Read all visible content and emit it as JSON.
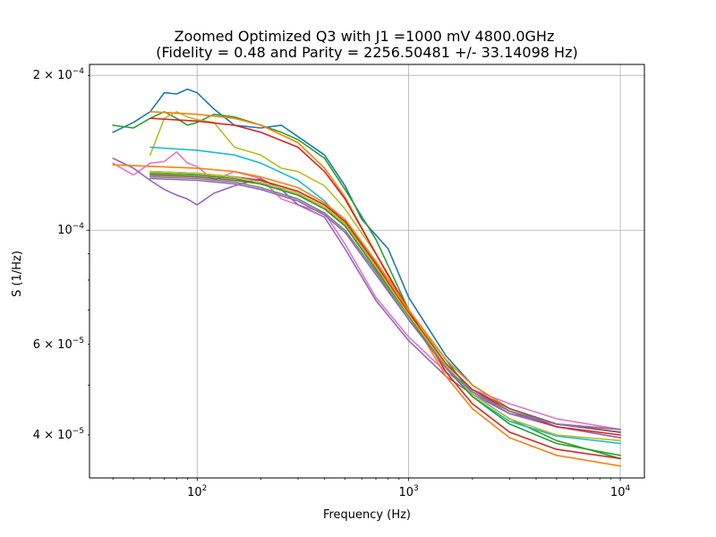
{
  "chart_data": {
    "type": "line",
    "title": "Zoomed Optimized Q3 with J1 =1000 mV 4800.0GHz",
    "subtitle": "(Fidelity = 0.48 and Parity = 2256.50481 +/- 33.14098 Hz)",
    "xlabel": "Frequency (Hz)",
    "ylabel": "S (1/Hz)",
    "xscale": "log",
    "yscale": "log",
    "xlim": [
      31,
      13000
    ],
    "ylim": [
      3.3e-05,
      0.00021
    ],
    "grid": true,
    "xticks": [
      {
        "value": 100,
        "base": "10",
        "exp": "2"
      },
      {
        "value": 1000,
        "base": "10",
        "exp": "3"
      },
      {
        "value": 10000,
        "base": "10",
        "exp": "4"
      }
    ],
    "yticks": [
      {
        "value": 0.0002,
        "mant": "2",
        "base": "10",
        "exp": "−4",
        "major": true
      },
      {
        "value": 0.0001,
        "mant": "",
        "base": "10",
        "exp": "−4",
        "major": true
      },
      {
        "value": 6e-05,
        "mant": "6",
        "base": "10",
        "exp": "−5",
        "major": false
      },
      {
        "value": 4e-05,
        "mant": "4",
        "base": "10",
        "exp": "−5",
        "major": false
      }
    ],
    "series": [
      {
        "color": "#1f77b4",
        "kind": "data",
        "x": [
          40,
          50,
          60,
          70,
          80,
          90,
          100,
          120,
          150,
          200,
          250,
          300,
          400,
          500,
          600,
          800,
          1000,
          1500,
          2000,
          3000,
          5000,
          10000
        ],
        "y": [
          0.000155,
          0.000162,
          0.00017,
          0.000185,
          0.000184,
          0.000188,
          0.000185,
          0.000172,
          0.00016,
          0.000158,
          0.00016,
          0.000152,
          0.00014,
          0.000122,
          0.000105,
          9.2e-05,
          7.4e-05,
          5.7e-05,
          5e-05,
          4.5e-05,
          4.2e-05,
          4.05e-05
        ]
      },
      {
        "color": "#2ca02c",
        "kind": "data",
        "x": [
          40,
          50,
          60,
          70,
          80,
          90,
          100,
          120,
          150,
          200,
          250,
          300,
          400,
          500,
          700,
          1000,
          1500,
          2000,
          3000,
          5000,
          10000
        ],
        "y": [
          0.00016,
          0.000158,
          0.000165,
          0.00017,
          0.000165,
          0.00016,
          0.000162,
          0.000168,
          0.000166,
          0.00016,
          0.000155,
          0.00015,
          0.000138,
          0.00012,
          9.6e-05,
          7e-05,
          5.6e-05,
          4.8e-05,
          4.3e-05,
          3.9e-05,
          3.6e-05
        ]
      },
      {
        "color": "#bcbd22",
        "kind": "data",
        "x": [
          60,
          70,
          80,
          90,
          100,
          120,
          150,
          200,
          250,
          300,
          400,
          500,
          700,
          1000,
          1500,
          2000,
          3000,
          5000,
          10000
        ],
        "y": [
          0.00014,
          0.000165,
          0.00017,
          0.000166,
          0.000164,
          0.000162,
          0.000145,
          0.00014,
          0.000132,
          0.00013,
          0.000122,
          0.00011,
          9e-05,
          7e-05,
          5.5e-05,
          4.9e-05,
          4.45e-05,
          4.15e-05,
          3.95e-05
        ]
      },
      {
        "color": "#e377c2",
        "kind": "data",
        "x": [
          40,
          50,
          60,
          70,
          80,
          90,
          100,
          120,
          150,
          200,
          250,
          300,
          400,
          500,
          700,
          1000,
          1500,
          2000,
          3000,
          5000,
          10000
        ],
        "y": [
          0.000135,
          0.000128,
          0.000135,
          0.000136,
          0.000142,
          0.000135,
          0.000133,
          0.000125,
          0.00013,
          0.000126,
          0.000115,
          0.000112,
          0.000108,
          9.4e-05,
          7.4e-05,
          6.2e-05,
          5.3e-05,
          4.9e-05,
          4.6e-05,
          4.3e-05,
          4.1e-05
        ]
      },
      {
        "color": "#9467bd",
        "kind": "data",
        "x": [
          40,
          50,
          60,
          70,
          80,
          90,
          100,
          120,
          150,
          200,
          250,
          300,
          400,
          500,
          700,
          1000,
          1500,
          2000,
          3000,
          5000,
          10000
        ],
        "y": [
          0.000138,
          0.000132,
          0.000125,
          0.00012,
          0.000117,
          0.000115,
          0.000112,
          0.000118,
          0.000122,
          0.000126,
          0.00012,
          0.000112,
          0.000106,
          9.2e-05,
          7.3e-05,
          6.1e-05,
          5.2e-05,
          4.8e-05,
          4.4e-05,
          4.15e-05,
          3.95e-05
        ]
      },
      {
        "color": "#17becf",
        "kind": "fit",
        "x": [
          60,
          100,
          150,
          200,
          300,
          400,
          500,
          700,
          1000,
          1500,
          2000,
          3000,
          5000,
          10000
        ],
        "y": [
          0.000145,
          0.000143,
          0.00014,
          0.000135,
          0.000125,
          0.000114,
          0.000103,
          8.5e-05,
          6.8e-05,
          5.4e-05,
          4.75e-05,
          4.25e-05,
          3.98e-05,
          3.85e-05
        ]
      },
      {
        "color": "#ff7f0e",
        "kind": "fit",
        "x": [
          60,
          100,
          150,
          200,
          300,
          400,
          500,
          700,
          1000,
          1500,
          2000,
          3000,
          5000,
          10000
        ],
        "y": [
          0.00017,
          0.000168,
          0.000165,
          0.00016,
          0.000148,
          0.000132,
          0.000116,
          9e-05,
          6.9e-05,
          5.2e-05,
          4.5e-05,
          3.95e-05,
          3.65e-05,
          3.48e-05
        ]
      },
      {
        "color": "#d62728",
        "kind": "fit",
        "x": [
          60,
          100,
          150,
          200,
          300,
          400,
          500,
          700,
          1000,
          1500,
          2000,
          3000,
          5000,
          10000
        ],
        "y": [
          0.000165,
          0.000163,
          0.00016,
          0.000155,
          0.000145,
          0.00013,
          0.000115,
          9e-05,
          7e-05,
          5.3e-05,
          4.6e-05,
          4.05e-05,
          3.75e-05,
          3.6e-05
        ]
      },
      {
        "color": "#ff7f0e",
        "kind": "fit",
        "x": [
          40,
          100,
          150,
          200,
          300,
          400,
          500,
          700,
          1000,
          1500,
          2000,
          3000,
          5000,
          10000
        ],
        "y": [
          0.000134,
          0.000132,
          0.00013,
          0.000127,
          0.000121,
          0.000113,
          0.000105,
          8.7e-05,
          7e-05,
          5.6e-05,
          5e-05,
          4.5e-05,
          4.2e-05,
          4.05e-05
        ]
      },
      {
        "color": "#d62728",
        "kind": "fit",
        "x": [
          60,
          100,
          150,
          200,
          300,
          400,
          500,
          700,
          1000,
          1500,
          2000,
          3000,
          5000,
          10000
        ],
        "y": [
          0.00013,
          0.000129,
          0.000127,
          0.000125,
          0.000119,
          0.000112,
          0.000104,
          8.6e-05,
          6.9e-05,
          5.5e-05,
          4.9e-05,
          4.45e-05,
          4.15e-05,
          4e-05
        ]
      },
      {
        "color": "#8c564b",
        "kind": "fit",
        "x": [
          60,
          100,
          150,
          200,
          300,
          400,
          500,
          700,
          1000,
          1500,
          2000,
          3000,
          5000,
          10000
        ],
        "y": [
          0.000128,
          0.000127,
          0.000125,
          0.000123,
          0.000117,
          0.00011,
          0.000102,
          8.4e-05,
          6.8e-05,
          5.5e-05,
          4.9e-05,
          4.5e-05,
          4.2e-05,
          4.05e-05
        ]
      },
      {
        "color": "#7f7f7f",
        "kind": "fit",
        "x": [
          60,
          100,
          150,
          200,
          300,
          400,
          500,
          700,
          1000,
          1500,
          2000,
          3000,
          5000,
          10000
        ],
        "y": [
          0.000127,
          0.000126,
          0.000124,
          0.000121,
          0.000115,
          0.000108,
          0.0001,
          8.3e-05,
          6.7e-05,
          5.4e-05,
          4.85e-05,
          4.45e-05,
          4.2e-05,
          4.1e-05
        ]
      },
      {
        "color": "#2ca02c",
        "kind": "fit",
        "x": [
          60,
          100,
          150,
          200,
          300,
          400,
          500,
          700,
          1000,
          1500,
          2000,
          3000,
          5000,
          10000
        ],
        "y": [
          0.000129,
          0.000128,
          0.000126,
          0.000123,
          0.000117,
          0.00011,
          0.000102,
          8.4e-05,
          6.8e-05,
          5.4e-05,
          4.75e-05,
          4.2e-05,
          3.85e-05,
          3.65e-05
        ]
      },
      {
        "color": "#bcbd22",
        "kind": "fit",
        "x": [
          60,
          100,
          150,
          200,
          300,
          400,
          500,
          700,
          1000,
          1500,
          2000,
          3000,
          5000,
          10000
        ],
        "y": [
          0.00013,
          0.000129,
          0.000127,
          0.000124,
          0.000118,
          0.000111,
          0.000103,
          8.5e-05,
          6.85e-05,
          5.45e-05,
          4.8e-05,
          4.3e-05,
          4e-05,
          3.9e-05
        ]
      },
      {
        "color": "#9467bd",
        "kind": "fit",
        "x": [
          60,
          100,
          150,
          200,
          300,
          400,
          500,
          700,
          1000,
          1500,
          2000,
          3000,
          5000,
          10000
        ],
        "y": [
          0.000126,
          0.000125,
          0.000123,
          0.00012,
          0.000114,
          0.000107,
          9.9e-05,
          8.2e-05,
          6.7e-05,
          5.4e-05,
          4.85e-05,
          4.4e-05,
          4.2e-05,
          4.1e-05
        ]
      }
    ]
  }
}
